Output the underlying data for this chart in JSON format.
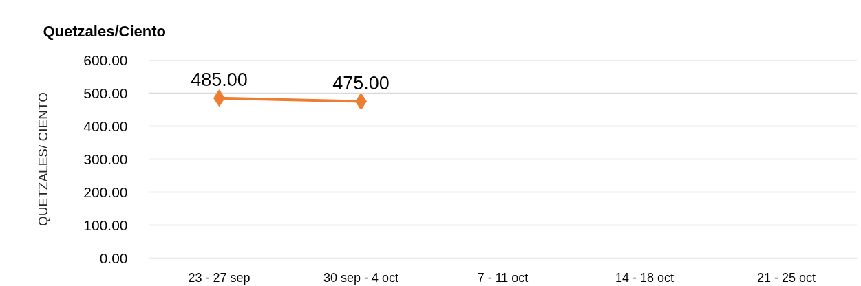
{
  "chart_data": {
    "type": "line",
    "title": "Quetzales/Ciento",
    "ylabel": "QUETZALES/ CIENTO",
    "categories": [
      "23 - 27 sep",
      "30 sep - 4 oct",
      "7 - 11 oct",
      "14 - 18 oct",
      "21 - 25 oct"
    ],
    "series": [
      {
        "color": "#ed7d31",
        "values": [
          485,
          475,
          null,
          null,
          null
        ],
        "value_labels": [
          "485.00",
          "475.00",
          null,
          null,
          null
        ]
      }
    ],
    "ylim": [
      0,
      600
    ],
    "yticks": [
      {
        "value": 0,
        "label": "0.00"
      },
      {
        "value": 100,
        "label": "100.00"
      },
      {
        "value": 200,
        "label": "200.00"
      },
      {
        "value": 300,
        "label": "300.00"
      },
      {
        "value": 400,
        "label": "400.00"
      },
      {
        "value": 500,
        "label": "500.00"
      },
      {
        "value": 600,
        "label": "600.00"
      }
    ],
    "grid": "y",
    "marker": "diamond",
    "line_style": "solid"
  }
}
